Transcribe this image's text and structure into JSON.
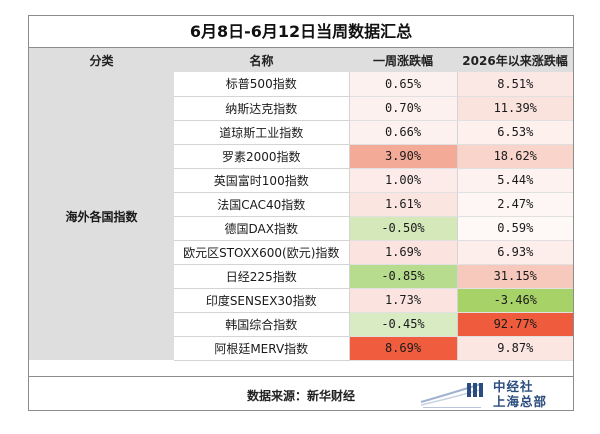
{
  "title": "6月8日-6月12日当周数据汇总",
  "headers": [
    "分类",
    "名称",
    "一周涨跌幅",
    "2026年以来涨跌幅"
  ],
  "category": "海外各国指数",
  "colors": {
    "light_pink": "#fbe9e6",
    "pink": "#f6c9bf",
    "salmon": "#f3a893",
    "red": "#ee5d3e",
    "light_green": "#d1e7b5",
    "green": "#9ccf5a"
  },
  "rows": [
    {
      "name": "标普500指数",
      "week": "0.65%",
      "ytd": "8.51%",
      "week_color": "#fdf1ef",
      "ytd_color": "#fbe7e3"
    },
    {
      "name": "纳斯达克指数",
      "week": "0.70%",
      "ytd": "11.39%",
      "week_color": "#fdf1ef",
      "ytd_color": "#fae2dd"
    },
    {
      "name": "道琼斯工业指数",
      "week": "0.66%",
      "ytd": "6.53%",
      "week_color": "#fdf1ef",
      "ytd_color": "#fdf0ed"
    },
    {
      "name": "罗素2000指数",
      "week": "3.90%",
      "ytd": "18.62%",
      "week_color": "#f3ab98",
      "ytd_color": "#f8d4cb"
    },
    {
      "name": "英国富时100指数",
      "week": "1.00%",
      "ytd": "5.44%",
      "week_color": "#fcebe8",
      "ytd_color": "#fdf2f0"
    },
    {
      "name": "法国CAC40指数",
      "week": "1.61%",
      "ytd": "2.47%",
      "week_color": "#fbe5e1",
      "ytd_color": "#fef6f5"
    },
    {
      "name": "德国DAX指数",
      "week": "-0.50%",
      "ytd": "0.59%",
      "week_color": "#d4e8b9",
      "ytd_color": "#fef8f7"
    },
    {
      "name": "欧元区STOXX600(欧元)指数",
      "week": "1.69%",
      "ytd": "6.93%",
      "week_color": "#fbe4e0",
      "ytd_color": "#fdeeeb"
    },
    {
      "name": "日经225指数",
      "week": "-0.85%",
      "ytd": "31.15%",
      "week_color": "#b8dc8d",
      "ytd_color": "#f7c8bc"
    },
    {
      "name": "印度SENSEX30指数",
      "week": "1.73%",
      "ytd": "-3.46%",
      "week_color": "#fbe4e0",
      "ytd_color": "#a7d267"
    },
    {
      "name": "韩国综合指数",
      "week": "-0.45%",
      "ytd": "92.77%",
      "week_color": "#d9ebc2",
      "ytd_color": "#ee5c3d"
    },
    {
      "name": "阿根廷MERV指数",
      "week": "8.69%",
      "ytd": "9.87%",
      "week_color": "#ef5d3e",
      "ytd_color": "#fbe6e2"
    }
  ],
  "footer": {
    "source": "数据来源：新华财经",
    "logo_line1": "中经社",
    "logo_line2": "上海总部",
    "logo_icon": "cei-logo-icon"
  }
}
